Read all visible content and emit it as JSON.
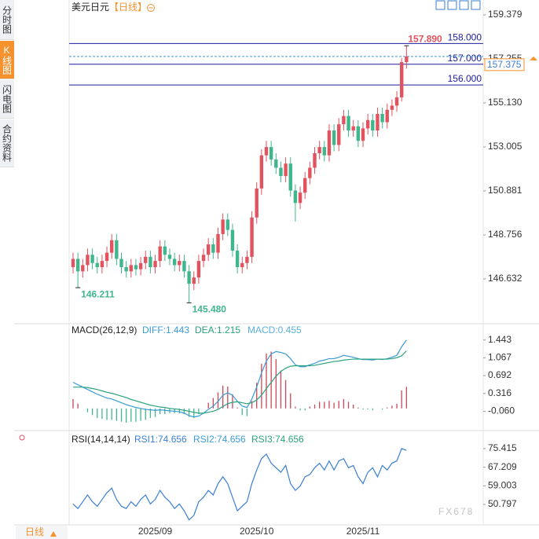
{
  "sidebar_tabs": [
    "分时图",
    "K线图",
    "闪电图",
    "合约资料"
  ],
  "header": {
    "symbol": "美元日元",
    "period": "【日线】"
  },
  "period_selector": "日线",
  "watermark": "FX678",
  "chart_data": [
    {
      "type": "candlestick",
      "up_color": "#e2525f",
      "down_color": "#3fb68b",
      "categories": [
        null,
        null,
        null,
        null,
        null,
        null,
        null,
        null,
        null,
        null,
        null,
        null,
        null,
        null,
        null,
        null,
        null,
        "2025/09",
        null,
        null,
        null,
        null,
        null,
        null,
        null,
        null,
        null,
        null,
        null,
        null,
        null,
        null,
        null,
        null,
        null,
        null,
        null,
        null,
        "2025/10",
        null,
        null,
        null,
        null,
        null,
        null,
        null,
        null,
        null,
        null,
        null,
        null,
        null,
        null,
        null,
        null,
        null,
        null,
        null,
        null,
        null,
        "2025/11",
        null,
        null,
        null,
        null,
        null,
        null,
        null,
        null,
        null
      ],
      "open": [
        147.2,
        147.6,
        147.0,
        147.3,
        147.8,
        147.4,
        147.2,
        147.5,
        147.9,
        148.5,
        147.6,
        147.2,
        147.0,
        147.3,
        147.1,
        147.4,
        147.7,
        147.2,
        147.5,
        148.2,
        147.8,
        147.6,
        147.3,
        147.5,
        147.0,
        146.4,
        146.7,
        147.5,
        147.8,
        148.3,
        147.9,
        148.8,
        149.5,
        149.0,
        148.0,
        147.2,
        147.4,
        147.7,
        149.6,
        151.0,
        152.6,
        153.0,
        152.4,
        152.0,
        151.6,
        152.2,
        150.9,
        150.3,
        150.8,
        151.5,
        152.0,
        152.7,
        153.0,
        152.6,
        153.8,
        153.1,
        154.1,
        154.5,
        153.8,
        154.0,
        153.3,
        153.9,
        154.3,
        153.8,
        154.6,
        154.2,
        154.8,
        155.0,
        155.4,
        157.1
      ],
      "high": [
        147.9,
        147.9,
        147.6,
        148.1,
        148.1,
        147.7,
        147.8,
        148.2,
        148.8,
        148.8,
        147.9,
        147.5,
        147.6,
        147.6,
        147.7,
        148.0,
        148.0,
        147.8,
        148.5,
        148.5,
        148.1,
        147.9,
        147.8,
        147.8,
        147.3,
        147.0,
        147.8,
        148.1,
        148.6,
        148.6,
        149.1,
        149.8,
        149.8,
        149.3,
        148.3,
        147.7,
        148.0,
        149.9,
        151.3,
        152.9,
        153.3,
        153.3,
        152.7,
        152.3,
        152.5,
        152.5,
        151.2,
        151.1,
        151.8,
        152.3,
        153.0,
        153.3,
        153.3,
        154.1,
        154.1,
        154.4,
        154.8,
        154.8,
        154.3,
        154.3,
        154.2,
        154.6,
        154.6,
        154.9,
        154.9,
        155.1,
        155.3,
        155.7,
        157.3,
        157.89
      ],
      "low": [
        146.9,
        146.211,
        146.7,
        147.0,
        147.1,
        146.9,
        146.9,
        147.2,
        147.6,
        147.3,
        146.9,
        146.7,
        146.7,
        146.8,
        146.8,
        147.1,
        146.9,
        146.9,
        147.2,
        147.5,
        147.3,
        147.0,
        147.0,
        146.7,
        145.48,
        146.1,
        146.4,
        147.2,
        147.5,
        147.6,
        147.6,
        148.5,
        148.7,
        147.7,
        146.9,
        146.9,
        147.1,
        147.4,
        149.3,
        150.7,
        152.3,
        152.1,
        151.7,
        151.3,
        151.3,
        150.6,
        149.4,
        150.0,
        150.5,
        151.2,
        151.7,
        152.4,
        152.3,
        152.3,
        152.8,
        152.8,
        153.8,
        153.5,
        153.5,
        153.0,
        153.0,
        153.6,
        153.5,
        153.5,
        153.9,
        153.9,
        154.5,
        154.7,
        155.2,
        156.8
      ],
      "close": [
        147.6,
        147.0,
        147.3,
        147.8,
        147.4,
        147.2,
        147.5,
        147.9,
        148.5,
        147.6,
        147.2,
        147.0,
        147.3,
        147.1,
        147.4,
        147.7,
        147.2,
        147.5,
        148.2,
        147.8,
        147.6,
        147.3,
        147.5,
        147.0,
        146.4,
        146.7,
        147.5,
        147.8,
        148.3,
        147.9,
        148.8,
        149.5,
        149.0,
        148.0,
        147.2,
        147.4,
        147.7,
        149.6,
        151.0,
        152.6,
        153.0,
        152.4,
        152.0,
        151.6,
        152.2,
        150.9,
        150.3,
        150.8,
        151.5,
        152.0,
        152.7,
        153.0,
        152.6,
        153.8,
        153.1,
        154.1,
        154.5,
        153.8,
        154.0,
        153.3,
        153.9,
        154.3,
        153.8,
        154.6,
        154.2,
        154.8,
        155.0,
        155.4,
        157.1,
        157.375
      ],
      "ylim": [
        144.546,
        159.796
      ],
      "yticks": [
        159.379,
        157.255,
        {
          "value": 155.13,
          "label": "155.130"
        },
        153.005,
        150.881,
        148.756,
        146.632
      ],
      "levels": [
        {
          "value": 158,
          "label": "158.000"
        },
        {
          "value": 157,
          "label": "157.000"
        },
        {
          "value": 156,
          "label": "156.000"
        }
      ],
      "level_color": "#1c1c9c",
      "current_price": 157.375,
      "annotations": [
        {
          "index": 1,
          "value": 146.211,
          "label": "146.211",
          "color": "#3fb68b"
        },
        {
          "index": 24,
          "value": 145.48,
          "label": "145.480",
          "color": "#3fb68b"
        },
        {
          "index": 69,
          "value": 157.89,
          "label": "157.890",
          "color": "#e2525f"
        }
      ]
    },
    {
      "type": "macd",
      "title": "MACD(26,12,9)",
      "up_color": "#c9485b",
      "down_color": "#3fb68b",
      "ylim": [
        -0.45,
        1.77
      ],
      "yticks": [
        1.443,
        1.067,
        0.692,
        0.316,
        {
          "value": -0.06,
          "label": "-0.060"
        }
      ],
      "series": [
        {
          "name": "DIFF:1.443",
          "color": "#3a9bd5",
          "kind": "line",
          "values": [
            0.55,
            0.5,
            0.45,
            0.4,
            0.35,
            0.3,
            0.26,
            0.22,
            0.2,
            0.16,
            0.12,
            0.08,
            0.05,
            0.02,
            0.0,
            -0.02,
            -0.03,
            -0.04,
            -0.03,
            -0.04,
            -0.05,
            -0.06,
            -0.07,
            -0.1,
            -0.15,
            -0.18,
            -0.16,
            -0.1,
            -0.02,
            0.05,
            0.15,
            0.28,
            0.33,
            0.28,
            0.15,
            0.05,
            0.02,
            0.2,
            0.45,
            0.75,
            1.0,
            1.15,
            1.2,
            1.18,
            1.15,
            1.05,
            0.92,
            0.88,
            0.88,
            0.92,
            0.95,
            1.0,
            1.02,
            1.05,
            1.05,
            1.08,
            1.12,
            1.1,
            1.08,
            1.05,
            1.03,
            1.03,
            1.02,
            1.04,
            1.03,
            1.05,
            1.08,
            1.12,
            1.3,
            1.443
          ]
        },
        {
          "name": "DEA:1.215",
          "color": "#2aa27e",
          "kind": "line",
          "values": [
            0.45,
            0.45,
            0.45,
            0.44,
            0.42,
            0.4,
            0.37,
            0.34,
            0.32,
            0.29,
            0.26,
            0.23,
            0.19,
            0.16,
            0.13,
            0.1,
            0.07,
            0.05,
            0.03,
            0.02,
            0.0,
            -0.01,
            -0.02,
            -0.04,
            -0.06,
            -0.08,
            -0.1,
            -0.1,
            -0.08,
            -0.06,
            -0.02,
            0.04,
            0.1,
            0.13,
            0.14,
            0.12,
            0.1,
            0.12,
            0.18,
            0.28,
            0.42,
            0.55,
            0.68,
            0.78,
            0.85,
            0.89,
            0.9,
            0.9,
            0.9,
            0.9,
            0.91,
            0.93,
            0.95,
            0.97,
            0.99,
            1.0,
            1.02,
            1.03,
            1.04,
            1.04,
            1.04,
            1.04,
            1.04,
            1.04,
            1.04,
            1.04,
            1.05,
            1.07,
            1.11,
            1.215
          ]
        },
        {
          "name": "MACD:0.455",
          "color": "#5ab0d8",
          "kind": "bar",
          "values": [
            0.2,
            0.1,
            0.0,
            -0.08,
            -0.14,
            -0.2,
            -0.22,
            -0.24,
            -0.24,
            -0.26,
            -0.28,
            -0.3,
            -0.28,
            -0.28,
            -0.26,
            -0.24,
            -0.2,
            -0.18,
            -0.12,
            -0.12,
            -0.1,
            -0.1,
            -0.1,
            -0.12,
            -0.18,
            -0.2,
            -0.12,
            0.0,
            0.12,
            0.22,
            0.34,
            0.48,
            0.46,
            0.3,
            0.02,
            -0.14,
            -0.16,
            0.16,
            0.54,
            0.94,
            1.16,
            1.2,
            1.04,
            0.8,
            0.6,
            0.32,
            0.04,
            -0.04,
            -0.04,
            0.04,
            0.08,
            0.14,
            0.14,
            0.16,
            0.12,
            0.16,
            0.2,
            0.14,
            0.08,
            0.02,
            -0.02,
            -0.02,
            -0.04,
            0.0,
            -0.02,
            0.02,
            0.06,
            0.1,
            0.38,
            0.455
          ]
        }
      ]
    },
    {
      "type": "rsi",
      "title": "RSI(14,14,14)",
      "ylim": [
        41.8,
        82.7
      ],
      "yticks": [
        75.415,
        67.209,
        59.003,
        50.797
      ],
      "series": [
        {
          "name": "RSI1:74.656",
          "color": "#3a7fd5",
          "kind": "line",
          "values": [
            51,
            49,
            52,
            55,
            52,
            50,
            53,
            56,
            58,
            53,
            50,
            49,
            52,
            50,
            53,
            55,
            51,
            53,
            57,
            54,
            52,
            49,
            51,
            48,
            44,
            46,
            52,
            54,
            57,
            55,
            60,
            63,
            60,
            54,
            48,
            50,
            52,
            60,
            66,
            71,
            73,
            69,
            67,
            65,
            68,
            60,
            57,
            59,
            63,
            64,
            67,
            69,
            66,
            70,
            66,
            70,
            71,
            67,
            68,
            63,
            60,
            65,
            67,
            63,
            68,
            66,
            69,
            70,
            75.5,
            74.656
          ]
        }
      ],
      "extra_legend": [
        {
          "name": "RSI2:74.656",
          "color": "#3a9bd5"
        },
        {
          "name": "RSI3:74.656",
          "color": "#2aa27e"
        }
      ]
    }
  ]
}
